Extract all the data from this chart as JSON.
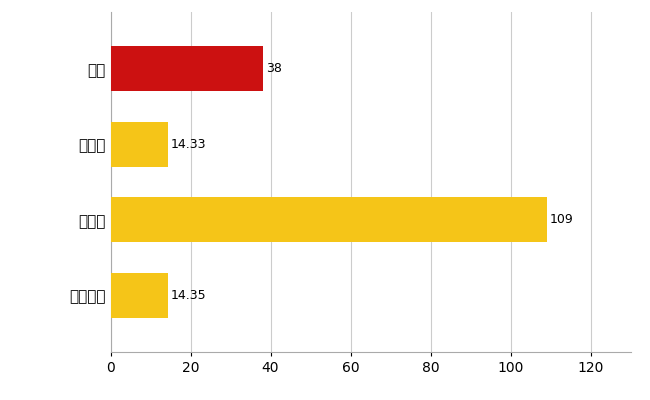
{
  "categories": [
    "全国平均",
    "県最大",
    "県平均",
    "柏市"
  ],
  "values": [
    14.35,
    109,
    14.33,
    38
  ],
  "bar_colors": [
    "#f5c518",
    "#f5c518",
    "#f5c518",
    "#cc1111"
  ],
  "labels": [
    "14.35",
    "109",
    "14.33",
    "38"
  ],
  "xlim": [
    0,
    130
  ],
  "xticks": [
    0,
    20,
    40,
    60,
    80,
    100,
    120
  ],
  "grid_color": "#cccccc",
  "background_color": "#ffffff",
  "bar_height": 0.6,
  "label_fontsize": 9,
  "tick_fontsize": 10,
  "ytick_fontsize": 11
}
